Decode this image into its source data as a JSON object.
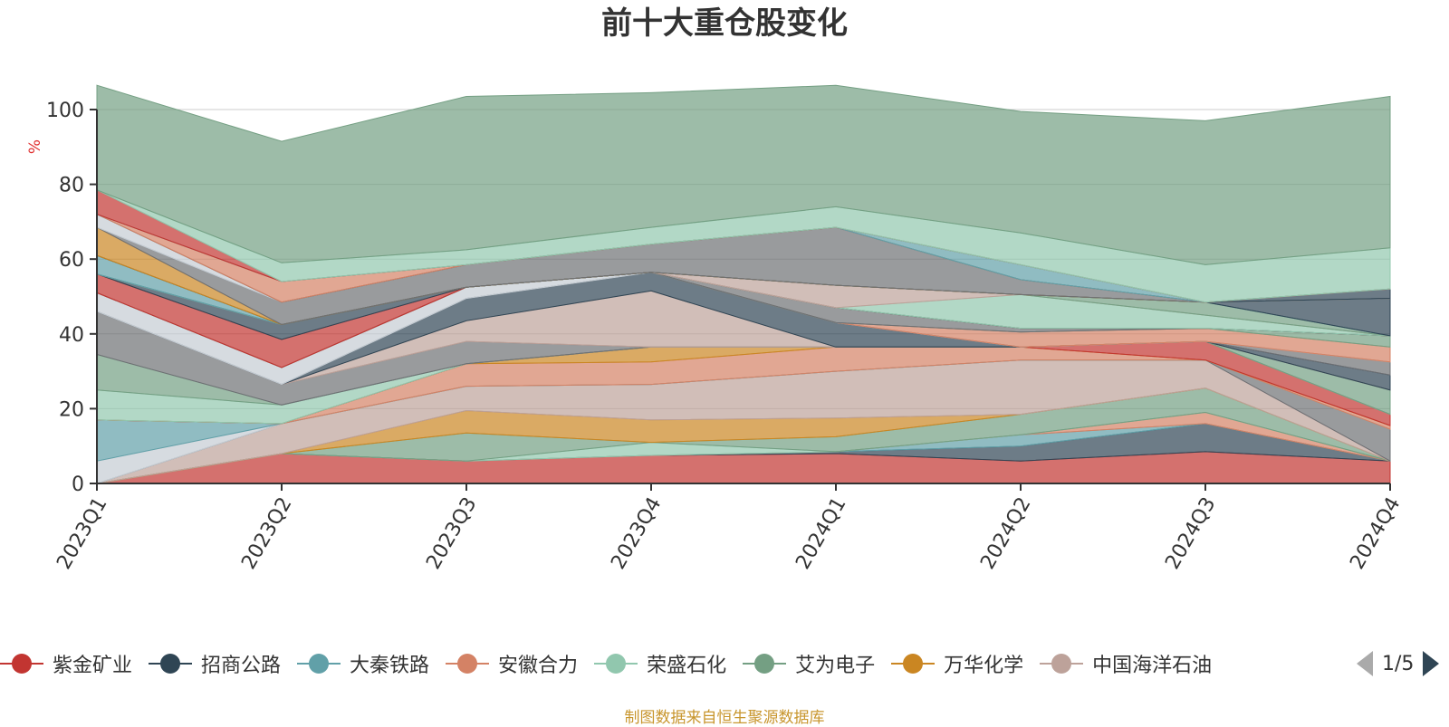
{
  "chart_data": {
    "type": "area",
    "title": "前十大重仓股变化",
    "ylabel": "%",
    "ylim": [
      0,
      100
    ],
    "grid": true,
    "legend_placement": "bottom",
    "categories": [
      "2023Q1",
      "2023Q2",
      "2023Q3",
      "2023Q4",
      "2024Q1",
      "2024Q2",
      "2024Q3",
      "2024Q4"
    ],
    "y_ticks": [
      0,
      20,
      40,
      60,
      80,
      100
    ],
    "series": [
      {
        "name": "紫金矿业",
        "color": "#c23531",
        "values": [
          0,
          8,
          6,
          7.5,
          8,
          6,
          8.5,
          6
        ]
      },
      {
        "name": "招商公路",
        "color": "#2f4554",
        "values": [
          0,
          0,
          0,
          0,
          0.5,
          4,
          7.5,
          0
        ]
      },
      {
        "name": "大秦铁路",
        "color": "#61a0a8",
        "values": [
          0,
          0,
          0,
          0,
          0,
          3,
          0,
          0
        ]
      },
      {
        "name": "安徽合力",
        "color": "#d48265",
        "values": [
          0,
          0,
          0,
          0,
          0,
          0,
          3,
          0
        ]
      },
      {
        "name": "荣盛石化",
        "color": "#91c7ae",
        "values": [
          0,
          0,
          0,
          3.5,
          0,
          0,
          0,
          0
        ]
      },
      {
        "name": "艾为电子",
        "color": "#749f83",
        "values": [
          0,
          0,
          7.5,
          0,
          4,
          5.5,
          6.5,
          0
        ]
      },
      {
        "name": "万华化学",
        "color": "#ca8622",
        "values": [
          0,
          0,
          6,
          6,
          5,
          0,
          0,
          0
        ]
      },
      {
        "name": "中国海洋石油",
        "color": "#bda29a",
        "values": [
          0,
          8,
          6.5,
          9.5,
          12.5,
          14.5,
          7.5,
          0
        ]
      },
      {
        "name": "",
        "color": "#6e7074",
        "values": [
          0,
          0,
          0,
          0,
          0,
          0,
          0,
          8.5
        ]
      },
      {
        "name": "",
        "color": "#c4ccd3",
        "values": [
          6,
          0,
          0,
          0,
          0,
          0,
          0,
          0
        ]
      },
      {
        "name": "",
        "color": "#61a0a8",
        "values": [
          11,
          0,
          0,
          0,
          0,
          0,
          0,
          0
        ]
      },
      {
        "name": "",
        "color": "#d48265",
        "values": [
          0,
          0,
          6,
          6,
          6.5,
          3.5,
          0,
          1
        ]
      },
      {
        "name": "",
        "color": "#ca8622",
        "values": [
          0,
          0,
          0,
          4,
          0,
          0,
          0,
          0
        ]
      },
      {
        "name": "",
        "color": "#c23531",
        "values": [
          0,
          0,
          0,
          0,
          0,
          0,
          5,
          3
        ]
      },
      {
        "name": "",
        "color": "#91c7ae",
        "values": [
          8,
          5,
          0,
          0,
          0,
          0,
          0,
          0
        ]
      },
      {
        "name": "",
        "color": "#749f83",
        "values": [
          9.5,
          0,
          0,
          0,
          0,
          0,
          0,
          6.5
        ]
      },
      {
        "name": "",
        "color": "#6e7074",
        "values": [
          11.5,
          5.5,
          6,
          0,
          0,
          0,
          0,
          0
        ]
      },
      {
        "name": "",
        "color": "#bda29a",
        "values": [
          0,
          0,
          5.5,
          15,
          0,
          0,
          0,
          0
        ]
      },
      {
        "name": "",
        "color": "#2f4554",
        "values": [
          0,
          0,
          6,
          5,
          6.5,
          0,
          0,
          4
        ]
      },
      {
        "name": "",
        "color": "#6e7074",
        "values": [
          0,
          0,
          0,
          0,
          0,
          0,
          0,
          3.5
        ]
      },
      {
        "name": "",
        "color": "#c4ccd3",
        "values": [
          5,
          4.5,
          3,
          0,
          0,
          0,
          0,
          0
        ]
      },
      {
        "name": "",
        "color": "#d48265",
        "values": [
          0,
          0,
          0,
          0,
          0,
          4,
          3.5,
          4
        ]
      },
      {
        "name": "",
        "color": "#749f83",
        "values": [
          0,
          0,
          0,
          0,
          0,
          0,
          0,
          3
        ]
      },
      {
        "name": "",
        "color": "#6e7074",
        "values": [
          0,
          0,
          0,
          0,
          4,
          1,
          0,
          0
        ]
      },
      {
        "name": "",
        "color": "#c23531",
        "values": [
          5,
          7.5,
          0,
          0,
          0,
          0,
          0,
          0
        ]
      },
      {
        "name": "",
        "color": "#2f4554",
        "values": [
          0,
          4,
          0,
          0,
          0,
          0,
          0,
          0
        ]
      },
      {
        "name": "",
        "color": "#91c7ae",
        "values": [
          0,
          0,
          0,
          0,
          0,
          9,
          3.5,
          0
        ]
      },
      {
        "name": "",
        "color": "#bda29a",
        "values": [
          0,
          0,
          0,
          0,
          6,
          0,
          0,
          0
        ]
      },
      {
        "name": "",
        "color": "#749f83",
        "values": [
          0,
          0,
          0,
          0,
          0,
          0,
          3.5,
          0
        ]
      },
      {
        "name": "",
        "color": "#61a0a8",
        "values": [
          5,
          0,
          0,
          0,
          0,
          0,
          0,
          0
        ]
      },
      {
        "name": "",
        "color": "#2f4554",
        "values": [
          0,
          0,
          0,
          0,
          0,
          0,
          0,
          10
        ]
      },
      {
        "name": "",
        "color": "#ca8622",
        "values": [
          7.5,
          0,
          0,
          0,
          0,
          0,
          0,
          0
        ]
      },
      {
        "name": "",
        "color": "#6e7074",
        "values": [
          0,
          6,
          6,
          7.5,
          15.5,
          4,
          0,
          0
        ]
      },
      {
        "name": "",
        "color": "#c4ccd3",
        "values": [
          3.5,
          0,
          0,
          0,
          0,
          0,
          0,
          0
        ]
      },
      {
        "name": "",
        "color": "#2f4554",
        "values": [
          0,
          0,
          0,
          0,
          0,
          0,
          0,
          2.5
        ]
      },
      {
        "name": "",
        "color": "#d48265",
        "values": [
          0,
          5.5,
          0,
          0,
          0,
          0,
          0,
          0
        ]
      },
      {
        "name": "",
        "color": "#61a0a8",
        "values": [
          0,
          0,
          0,
          0,
          0,
          4,
          0,
          0
        ]
      },
      {
        "name": "",
        "color": "#c23531",
        "values": [
          6.5,
          0,
          0,
          0,
          0,
          0,
          0,
          0
        ]
      },
      {
        "name": "",
        "color": "#91c7ae",
        "values": [
          0,
          5,
          4,
          4.5,
          5.5,
          8.5,
          10,
          11
        ]
      },
      {
        "name": "",
        "color": "#749f83",
        "values": [
          28,
          32.5,
          41,
          36,
          32.5,
          32.5,
          38.5,
          40.5
        ]
      }
    ]
  },
  "legend": {
    "items": [
      {
        "name": "紫金矿业",
        "color": "#c23531"
      },
      {
        "name": "招商公路",
        "color": "#2f4554"
      },
      {
        "name": "大秦铁路",
        "color": "#61a0a8"
      },
      {
        "name": "安徽合力",
        "color": "#d48265"
      },
      {
        "name": "荣盛石化",
        "color": "#91c7ae"
      },
      {
        "name": "艾为电子",
        "color": "#749f83"
      },
      {
        "name": "万华化学",
        "color": "#ca8622"
      },
      {
        "name": "中国海洋石油",
        "color": "#bda29a"
      }
    ],
    "page_text": "1/5"
  },
  "footer": {
    "source_text": "制图数据来自恒生聚源数据库"
  }
}
